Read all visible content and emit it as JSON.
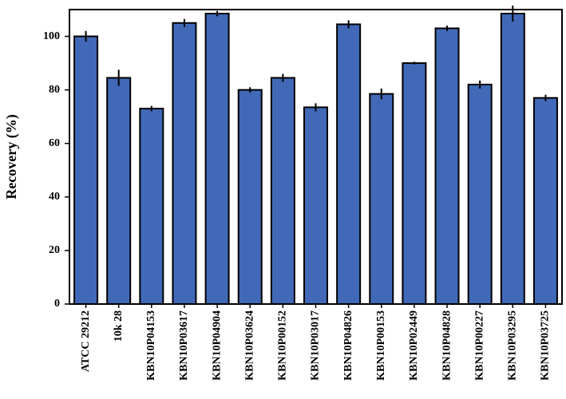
{
  "chart_data": {
    "type": "bar",
    "ylabel": "Recovery (%)",
    "xlabel": "",
    "ylim": [
      0,
      110
    ],
    "yticks": [
      0,
      20,
      40,
      60,
      80,
      100
    ],
    "grid": false,
    "bar_color": "#4169b8",
    "categories": [
      "ATCC 29212",
      "10k 28",
      "KBN10P04153",
      "KBN10P03617",
      "KBN10P04904",
      "KBN10P03624",
      "KBN10P00152",
      "KBN10P03017",
      "KBN10P04826",
      "KBN10P00153",
      "KBN10P02449",
      "KBN10P04828",
      "KBN10P00227",
      "KBN10P03295",
      "KBN10P03725"
    ],
    "values": [
      100,
      84.5,
      73,
      105,
      108.5,
      80,
      84.5,
      73.5,
      104.5,
      78.5,
      90,
      103,
      82,
      108.5,
      77
    ],
    "errors": [
      2,
      3,
      1,
      1.5,
      1,
      1,
      1.5,
      1.5,
      1.5,
      2,
      0.5,
      1,
      1.5,
      3,
      1.2
    ]
  }
}
